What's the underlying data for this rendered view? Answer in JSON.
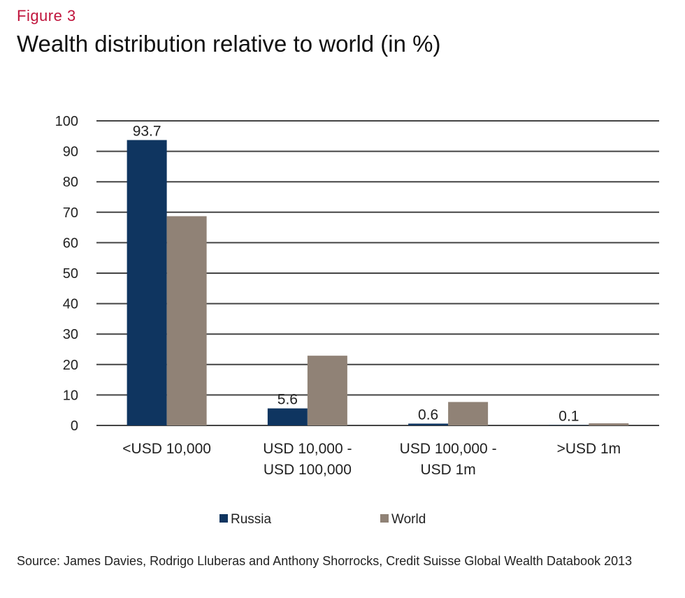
{
  "figure_label": "Figure 3",
  "source": "Source: James Davies, Rodrigo Lluberas and Anthony Shorrocks, Credit Suisse Global Wealth Databook 2013",
  "colors": {
    "russia": "#0f3560",
    "world": "#908276",
    "figure_label": "#c0143c",
    "gridline": "#444444"
  },
  "chart_data": {
    "type": "bar",
    "title": "Wealth distribution relative to world (in %)",
    "xlabel": "",
    "ylabel": "",
    "ylim": [
      0,
      100
    ],
    "yticks": [
      0,
      10,
      20,
      30,
      40,
      50,
      60,
      70,
      80,
      90,
      100
    ],
    "grid": true,
    "legend_position": "bottom",
    "categories": [
      [
        "<USD 10,000"
      ],
      [
        "USD 10,000 -",
        "USD 100,000"
      ],
      [
        "USD 100,000 -",
        "USD 1m"
      ],
      [
        ">USD 1m"
      ]
    ],
    "series": [
      {
        "name": "Russia",
        "values": [
          93.7,
          5.6,
          0.6,
          0.1
        ],
        "data_labels": [
          "93.7",
          "5.6",
          "0.6",
          "0.1"
        ],
        "color": "#0f3560"
      },
      {
        "name": "World",
        "values": [
          68.7,
          22.9,
          7.7,
          0.7
        ],
        "color": "#908276"
      }
    ]
  }
}
